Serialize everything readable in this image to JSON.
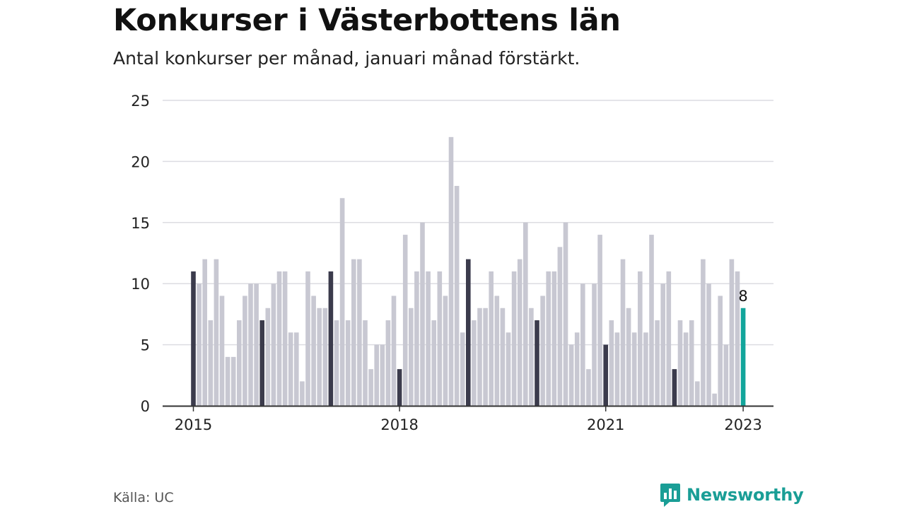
{
  "title": "Konkurser i Västerbottens län",
  "subtitle": "Antal konkurser per månad, januari månad förstärkt.",
  "source": "Källa: UC",
  "brand": {
    "name": "Newsworthy",
    "icon": "newsworthy-chart-logo-icon"
  },
  "colors": {
    "regular_bar": "#c8c8d2",
    "january_bar": "#3b3b4c",
    "latest_bar": "#12a59b",
    "grid": "#dcdce2",
    "axis": "#333333",
    "brand": "#1a9e96"
  },
  "chart_data": {
    "type": "bar",
    "ylim": [
      0,
      25
    ],
    "yticks": [
      0,
      5,
      10,
      15,
      20,
      25
    ],
    "grid": true,
    "x_tick_labels": [
      {
        "label": "2015",
        "index": 0
      },
      {
        "label": "2018",
        "index": 36
      },
      {
        "label": "2021",
        "index": 72
      },
      {
        "label": "2023",
        "index": 96
      }
    ],
    "months": [
      "2015-01",
      "2015-02",
      "2015-03",
      "2015-04",
      "2015-05",
      "2015-06",
      "2015-07",
      "2015-08",
      "2015-09",
      "2015-10",
      "2015-11",
      "2015-12",
      "2016-01",
      "2016-02",
      "2016-03",
      "2016-04",
      "2016-05",
      "2016-06",
      "2016-07",
      "2016-08",
      "2016-09",
      "2016-10",
      "2016-11",
      "2016-12",
      "2017-01",
      "2017-02",
      "2017-03",
      "2017-04",
      "2017-05",
      "2017-06",
      "2017-07",
      "2017-08",
      "2017-09",
      "2017-10",
      "2017-11",
      "2017-12",
      "2018-01",
      "2018-02",
      "2018-03",
      "2018-04",
      "2018-05",
      "2018-06",
      "2018-07",
      "2018-08",
      "2018-09",
      "2018-10",
      "2018-11",
      "2018-12",
      "2019-01",
      "2019-02",
      "2019-03",
      "2019-04",
      "2019-05",
      "2019-06",
      "2019-07",
      "2019-08",
      "2019-09",
      "2019-10",
      "2019-11",
      "2019-12",
      "2020-01",
      "2020-02",
      "2020-03",
      "2020-04",
      "2020-05",
      "2020-06",
      "2020-07",
      "2020-08",
      "2020-09",
      "2020-10",
      "2020-11",
      "2020-12",
      "2021-01",
      "2021-02",
      "2021-03",
      "2021-04",
      "2021-05",
      "2021-06",
      "2021-07",
      "2021-08",
      "2021-09",
      "2021-10",
      "2021-11",
      "2021-12",
      "2022-01",
      "2022-02",
      "2022-03",
      "2022-04",
      "2022-05",
      "2022-06",
      "2022-07",
      "2022-08",
      "2022-09",
      "2022-10",
      "2022-11",
      "2022-12",
      "2023-01"
    ],
    "values": [
      11,
      10,
      12,
      7,
      12,
      9,
      4,
      4,
      7,
      9,
      10,
      10,
      7,
      8,
      10,
      11,
      11,
      6,
      6,
      2,
      11,
      9,
      8,
      8,
      11,
      7,
      17,
      7,
      12,
      12,
      7,
      3,
      5,
      5,
      7,
      9,
      3,
      14,
      8,
      11,
      15,
      11,
      7,
      11,
      9,
      22,
      18,
      6,
      12,
      7,
      8,
      8,
      11,
      9,
      8,
      6,
      11,
      12,
      15,
      8,
      7,
      9,
      11,
      11,
      13,
      15,
      5,
      6,
      10,
      3,
      10,
      14,
      5,
      7,
      6,
      12,
      8,
      6,
      11,
      6,
      14,
      7,
      10,
      11,
      3,
      7,
      6,
      7,
      2,
      12,
      10,
      1,
      9,
      5,
      12,
      11,
      8
    ],
    "highlight_label": "8"
  }
}
